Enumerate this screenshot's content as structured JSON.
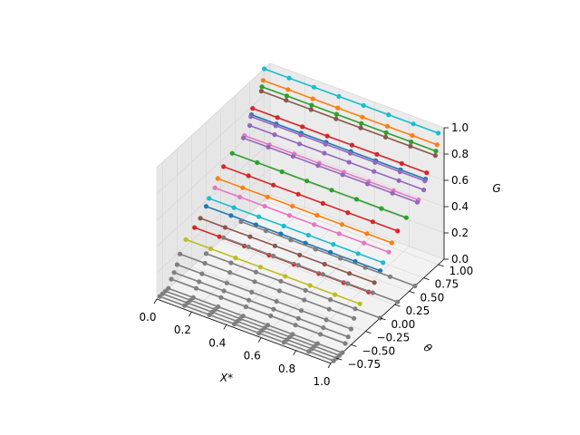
{
  "chart_data": {
    "type": "line",
    "projection": "3d",
    "axes": {
      "x": {
        "label": "X*",
        "lim": [
          0.0,
          1.0
        ],
        "ticks": [
          "0.0",
          "0.2",
          "0.4",
          "0.6",
          "0.8",
          "1.0"
        ]
      },
      "y": {
        "label": "θ",
        "lim": [
          -0.85,
          1.1
        ],
        "ticks": [
          "−0.75",
          "−0.50",
          "−0.25",
          "0.00",
          "0.25",
          "0.50",
          "0.75",
          "1.00"
        ]
      },
      "z": {
        "label": "G",
        "lim": [
          0.0,
          1.0
        ],
        "ticks": [
          "0.0",
          "0.2",
          "0.4",
          "0.6",
          "0.8",
          "1.0"
        ]
      }
    },
    "grid": true,
    "x_points": [
      0.0,
      0.143,
      0.286,
      0.429,
      0.571,
      0.714,
      0.857,
      1.0
    ],
    "series": [
      {
        "color": "#17becf",
        "theta": 1.0,
        "G": 1.0
      },
      {
        "color": "#ff7f0e",
        "theta": 0.98,
        "G": 0.92
      },
      {
        "color": "#2ca02c",
        "theta": 0.96,
        "G": 0.88
      },
      {
        "color": "#8c564b",
        "theta": 0.95,
        "G": 0.85
      },
      {
        "color": "#d62728",
        "theta": 0.8,
        "G": 0.78
      },
      {
        "color": "#1f77b4",
        "theta": 0.78,
        "G": 0.74
      },
      {
        "color": "#9467bd",
        "theta": 0.77,
        "G": 0.73
      },
      {
        "color": "#9467bd",
        "theta": 0.75,
        "G": 0.67
      },
      {
        "color": "#e377c2",
        "theta": 0.66,
        "G": 0.63
      },
      {
        "color": "#9467bd",
        "theta": 0.64,
        "G": 0.62
      },
      {
        "color": "#2ca02c",
        "theta": 0.45,
        "G": 0.58
      },
      {
        "color": "#d62728",
        "theta": 0.3,
        "G": 0.54
      },
      {
        "color": "#ff7f0e",
        "theta": 0.2,
        "G": 0.49
      },
      {
        "color": "#e377c2",
        "theta": 0.15,
        "G": 0.44
      },
      {
        "color": "#17becf",
        "theta": 0.05,
        "G": 0.4
      },
      {
        "color": "#1f77b4",
        "theta": 0.0,
        "G": 0.36
      },
      {
        "color": "#8c564b",
        "theta": -0.1,
        "G": 0.31
      },
      {
        "color": "#d62728",
        "theta": -0.2,
        "G": 0.28
      },
      {
        "color": "#bcbd22",
        "theta": -0.35,
        "G": 0.25
      },
      {
        "color": "#7f7f7f",
        "theta": -0.45,
        "G": 0.18
      },
      {
        "color": "#7f7f7f",
        "theta": -0.5,
        "G": 0.12
      },
      {
        "color": "#7f7f7f",
        "theta": -0.55,
        "G": 0.08
      },
      {
        "color": "#7f7f7f",
        "theta": -0.6,
        "G": 0.05
      },
      {
        "color": "#7f7f7f",
        "theta": -0.65,
        "G": 0.0
      },
      {
        "color": "#7f7f7f",
        "theta": -0.7,
        "G": 0.0
      },
      {
        "color": "#7f7f7f",
        "theta": -0.75,
        "G": 0.0
      },
      {
        "color": "#7f7f7f",
        "theta": -0.8,
        "G": 0.0
      },
      {
        "color": "#7f7f7f",
        "theta": 0.6,
        "G": 0.0
      },
      {
        "color": "#7f7f7f",
        "theta": 0.3,
        "G": 0.0
      },
      {
        "color": "#7f7f7f",
        "theta": 0.0,
        "G": 0.0
      }
    ]
  }
}
